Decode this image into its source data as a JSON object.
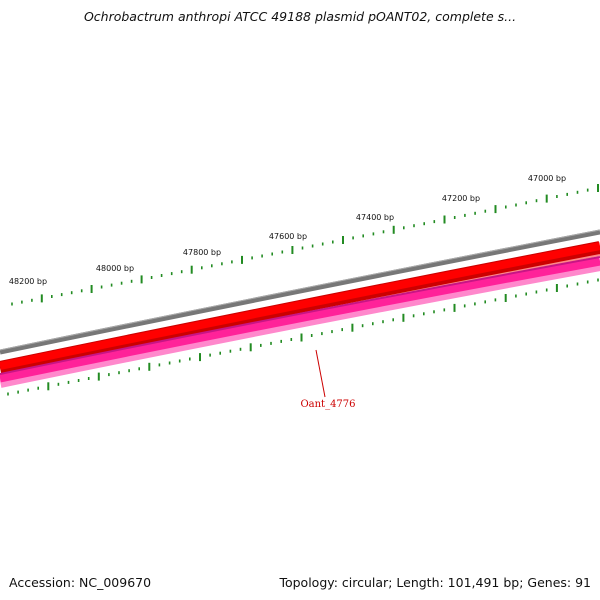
{
  "title": "Ochrobactrum anthropi ATCC 49188 plasmid pOANT02, complete s...",
  "footer": {
    "accession": "Accession: NC_009670",
    "summary": "Topology: circular; Length: 101,491 bp; Genes: 91"
  },
  "colors": {
    "background": "#ffffff",
    "backbone": "#808080",
    "forward_strand": "#ee0000",
    "reverse_strand": "#ff33aa",
    "tick": "#228b22",
    "gene_label": "#cc0000"
  },
  "ruler": {
    "labels": [
      "48200 bp",
      "48000 bp",
      "47800 bp",
      "47600 bp",
      "47400 bp",
      "47200 bp",
      "47000 bp"
    ]
  },
  "genes": [
    {
      "name": "Oant_4776"
    }
  ]
}
